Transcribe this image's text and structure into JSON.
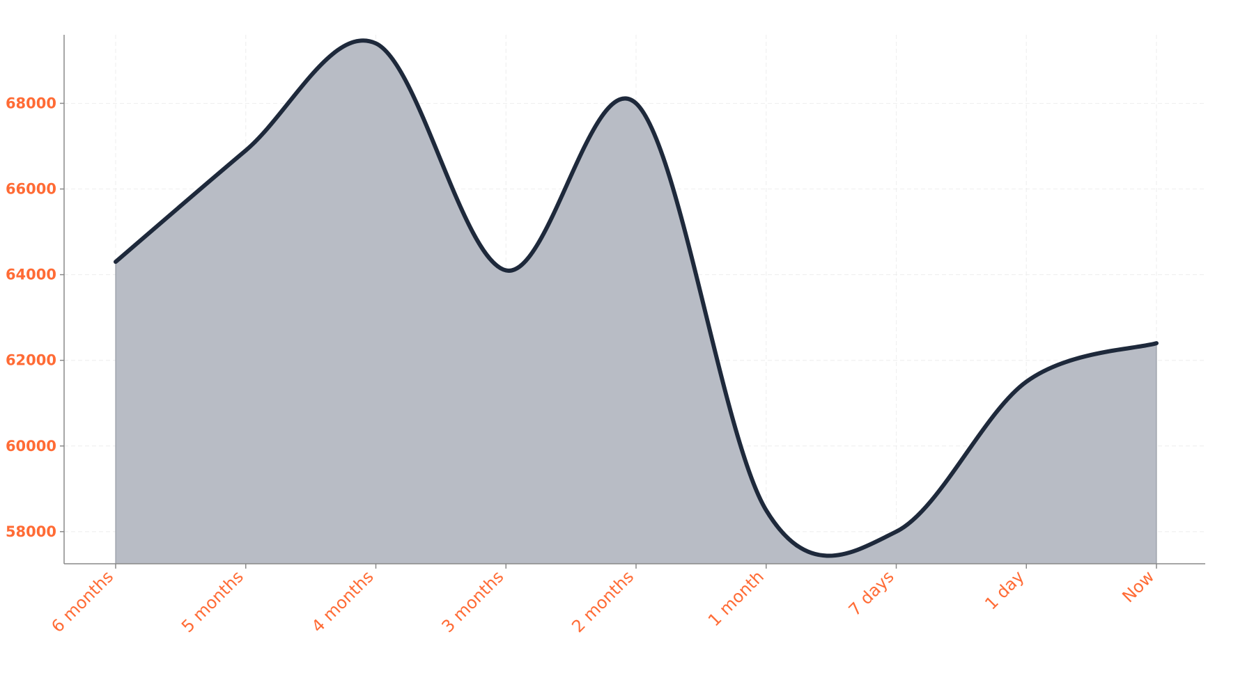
{
  "chart_data": {
    "type": "area",
    "title": "",
    "xlabel": "",
    "ylabel": "",
    "categories": [
      "6 months",
      "5 months",
      "4 months",
      "3 months",
      "2 months",
      "1 month",
      "7 days",
      "1 day",
      "Now"
    ],
    "series": [
      {
        "values": [
          64300,
          66900,
          69400,
          64100,
          68000,
          58500,
          58000,
          61500,
          62400
        ],
        "color": "#1e293b",
        "fill": "#b8bcc5"
      }
    ],
    "ylim": [
      57250,
      69600
    ],
    "yticks": [
      58000,
      60000,
      62000,
      64000,
      66000,
      68000
    ],
    "grid": true,
    "legend": "none",
    "curve": "smooth",
    "tick_label_color": "#ff6b35",
    "axis_color": "#888888",
    "grid_color": "#eeeeee"
  }
}
